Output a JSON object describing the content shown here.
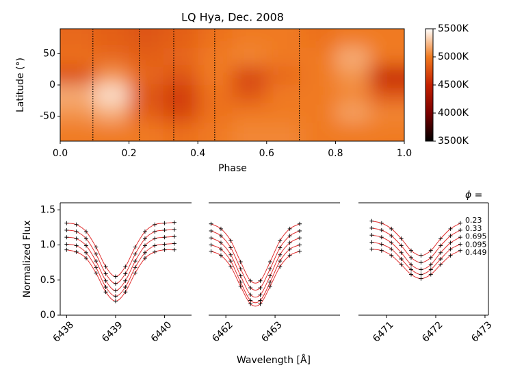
{
  "chart_data": [
    {
      "type": "heatmap",
      "title": "LQ Hya, Dec. 2008",
      "xlabel": "Phase",
      "ylabel": "Latitude (°)",
      "xlim": [
        0,
        1
      ],
      "ylim": [
        -90,
        90
      ],
      "xticks": [
        {
          "value": 0,
          "label": "0.0"
        },
        0.2,
        0.4,
        0.6,
        0.8,
        {
          "value": 1,
          "label": "1.0"
        }
      ],
      "yticks": [
        -50,
        0,
        50
      ],
      "phases": [
        0.05,
        0.15,
        0.25,
        0.35,
        0.45,
        0.55,
        0.65,
        0.75,
        0.85,
        0.95
      ],
      "latitudes": [
        75,
        45,
        15,
        -15,
        -45,
        -75
      ],
      "values": [
        [
          4900,
          4850,
          4800,
          4850,
          4950,
          5000,
          5000,
          4950,
          5000,
          5000
        ],
        [
          4950,
          4900,
          4850,
          4900,
          5000,
          5050,
          5000,
          5000,
          5200,
          5000
        ],
        [
          4750,
          5100,
          4900,
          4800,
          5000,
          4700,
          4900,
          5000,
          5100,
          4500
        ],
        [
          5200,
          5400,
          4800,
          4650,
          4950,
          4800,
          5000,
          5000,
          5050,
          4800
        ],
        [
          5100,
          5200,
          4850,
          4700,
          4950,
          5000,
          5000,
          5000,
          5150,
          5050
        ],
        [
          5000,
          5000,
          5000,
          4950,
          5000,
          5050,
          5050,
          5000,
          5000,
          5000
        ]
      ],
      "phase_lines": [
        0.095,
        0.23,
        0.33,
        0.449,
        0.695
      ],
      "clim": [
        3500,
        5500
      ],
      "colorscale": [
        [
          3500,
          "#000000"
        ],
        [
          4000,
          "#7a0000"
        ],
        [
          4500,
          "#c42000"
        ],
        [
          5000,
          "#f07a20"
        ],
        [
          5500,
          "#ffffff"
        ]
      ],
      "cticks": [
        {
          "value": 3500,
          "label": "3500K"
        },
        {
          "value": 4000,
          "label": "4000K"
        },
        {
          "value": 4500,
          "label": "4500K"
        },
        {
          "value": 5000,
          "label": "5000K"
        },
        {
          "value": 5500,
          "label": "5500K"
        }
      ]
    },
    {
      "type": "line-profile",
      "ylabel": "Normalized Flux",
      "xlabel": "Wavelength [Å]",
      "legend_title": "ϕ =",
      "ylim": [
        0,
        1.6
      ],
      "yticks": [
        {
          "value": 0,
          "label": "0.0"
        },
        0.5,
        {
          "value": 1,
          "label": "1.0"
        },
        1.5
      ],
      "marker_color": "#000000",
      "line_color": "#e03030",
      "series": [
        {
          "name": "0.23"
        },
        {
          "name": "0.33"
        },
        {
          "name": "0.695"
        },
        {
          "name": "0.095"
        },
        {
          "name": "0.449"
        }
      ],
      "panels": [
        {
          "xlim": [
            6437.87,
            6440.55
          ],
          "xticks": [
            6438,
            6439,
            6440
          ],
          "x": [
            6438.0,
            6438.2,
            6438.4,
            6438.6,
            6438.8,
            6439.0,
            6439.2,
            6439.4,
            6439.6,
            6439.8,
            6440.0,
            6440.2
          ],
          "values": [
            [
              1.31,
              1.29,
              1.19,
              0.97,
              0.69,
              0.55,
              0.69,
              0.97,
              1.19,
              1.29,
              1.31,
              1.32
            ],
            [
              1.21,
              1.19,
              1.09,
              0.87,
              0.59,
              0.45,
              0.59,
              0.87,
              1.09,
              1.19,
              1.21,
              1.22
            ],
            [
              1.11,
              1.09,
              0.99,
              0.77,
              0.49,
              0.35,
              0.49,
              0.77,
              0.99,
              1.09,
              1.11,
              1.12
            ],
            [
              1.01,
              0.99,
              0.89,
              0.68,
              0.4,
              0.27,
              0.4,
              0.68,
              0.89,
              0.99,
              1.01,
              1.02
            ],
            [
              0.93,
              0.9,
              0.81,
              0.6,
              0.33,
              0.2,
              0.33,
              0.6,
              0.81,
              0.9,
              0.93,
              0.93
            ]
          ]
        },
        {
          "xlim": [
            6461.65,
            6464.32
          ],
          "xticks": [
            6462,
            6463
          ],
          "x": [
            6461.7,
            6461.9,
            6462.1,
            6462.3,
            6462.5,
            6462.7,
            6462.9,
            6463.1,
            6463.3,
            6463.5
          ],
          "values": [
            [
              1.3,
              1.23,
              1.06,
              0.76,
              0.49,
              0.49,
              0.76,
              1.06,
              1.23,
              1.3
            ],
            [
              1.2,
              1.13,
              0.96,
              0.66,
              0.39,
              0.39,
              0.66,
              0.96,
              1.13,
              1.2
            ],
            [
              1.1,
              1.03,
              0.86,
              0.56,
              0.29,
              0.29,
              0.56,
              0.86,
              1.03,
              1.1
            ],
            [
              1.0,
              0.94,
              0.77,
              0.47,
              0.21,
              0.21,
              0.47,
              0.77,
              0.94,
              1.0
            ],
            [
              0.91,
              0.85,
              0.69,
              0.41,
              0.16,
              0.16,
              0.41,
              0.69,
              0.85,
              0.91
            ]
          ]
        },
        {
          "xlim": [
            6470.43,
            6473.07
          ],
          "xticks": [
            6471,
            6472,
            6473
          ],
          "x": [
            6470.7,
            6470.9,
            6471.1,
            6471.3,
            6471.5,
            6471.7,
            6471.9,
            6472.1,
            6472.3,
            6472.5
          ],
          "values": [
            [
              1.34,
              1.31,
              1.23,
              1.09,
              0.92,
              0.85,
              0.92,
              1.09,
              1.23,
              1.31
            ],
            [
              1.24,
              1.21,
              1.13,
              0.99,
              0.82,
              0.75,
              0.82,
              0.99,
              1.13,
              1.21
            ],
            [
              1.14,
              1.11,
              1.03,
              0.89,
              0.72,
              0.65,
              0.72,
              0.89,
              1.03,
              1.11
            ],
            [
              1.04,
              1.01,
              0.94,
              0.8,
              0.65,
              0.58,
              0.65,
              0.8,
              0.94,
              1.01
            ],
            [
              0.94,
              0.92,
              0.85,
              0.72,
              0.58,
              0.52,
              0.58,
              0.72,
              0.85,
              0.92
            ]
          ]
        }
      ]
    }
  ]
}
